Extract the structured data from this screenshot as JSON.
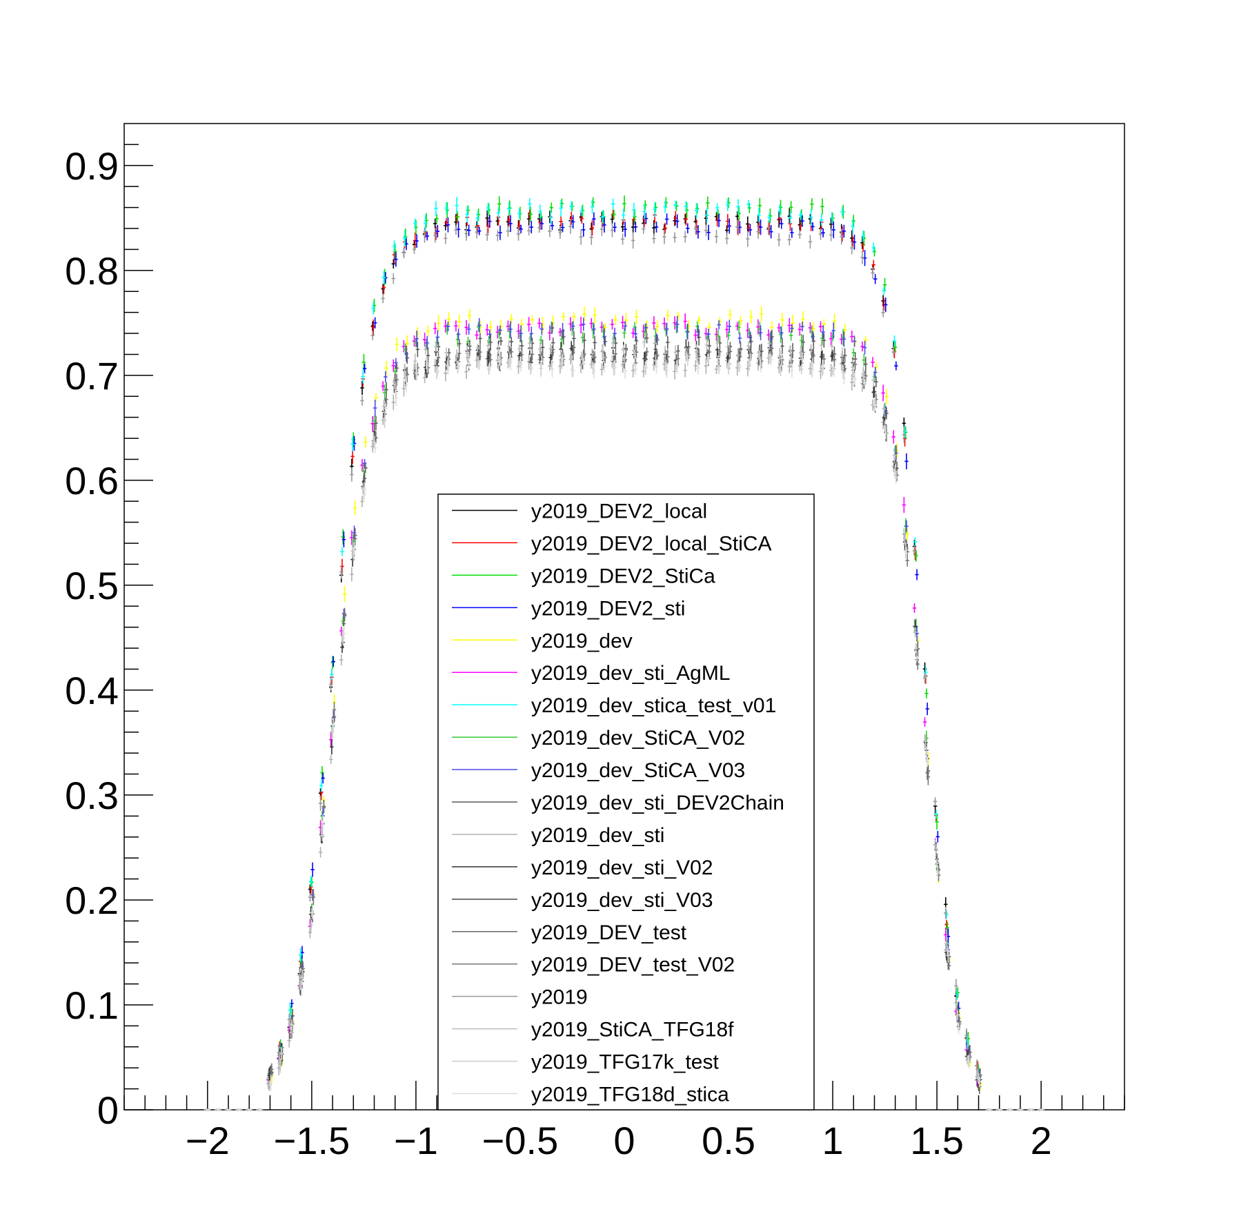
{
  "chart_data": {
    "type": "scatter",
    "xlim": [
      -2.4,
      2.4
    ],
    "ylim": [
      0,
      0.94
    ],
    "grid": false,
    "legend_position": "bottom-center",
    "x_ticks": [
      {
        "value": -2,
        "label": "−2"
      },
      {
        "value": -1.5,
        "label": "−1.5"
      },
      {
        "value": -1,
        "label": "−1"
      },
      {
        "value": -0.5,
        "label": "−0.5"
      },
      {
        "value": 0,
        "label": "0"
      },
      {
        "value": 0.5,
        "label": "0.5"
      },
      {
        "value": 1,
        "label": "1"
      },
      {
        "value": 1.5,
        "label": "1.5"
      },
      {
        "value": 2,
        "label": "2"
      }
    ],
    "y_ticks": [
      {
        "value": 0,
        "label": "0"
      },
      {
        "value": 0.1,
        "label": "0.1"
      },
      {
        "value": 0.2,
        "label": "0.2"
      },
      {
        "value": 0.3,
        "label": "0.3"
      },
      {
        "value": 0.4,
        "label": "0.4"
      },
      {
        "value": 0.5,
        "label": "0.5"
      },
      {
        "value": 0.6,
        "label": "0.6"
      },
      {
        "value": 0.7,
        "label": "0.7"
      },
      {
        "value": 0.8,
        "label": "0.8"
      },
      {
        "value": 0.9,
        "label": "0.9"
      }
    ],
    "series": [
      {
        "name": "y2019_DEV2_local",
        "color": "#000000",
        "plateau": 0.845
      },
      {
        "name": "y2019_DEV2_local_StiCA",
        "color": "#ff0000",
        "plateau": 0.847
      },
      {
        "name": "y2019_DEV2_StiCa",
        "color": "#00dd00",
        "plateau": 0.858
      },
      {
        "name": "y2019_DEV2_sti",
        "color": "#0000ff",
        "plateau": 0.843
      },
      {
        "name": "y2019_dev",
        "color": "#ffff00",
        "plateau": 0.752
      },
      {
        "name": "y2019_dev_sti_AgML",
        "color": "#ff00ff",
        "plateau": 0.745
      },
      {
        "name": "y2019_dev_stica_test_v01",
        "color": "#00ffff",
        "plateau": 0.857
      },
      {
        "name": "y2019_dev_StiCA_V02",
        "color": "#33cc33",
        "plateau": 0.74
      },
      {
        "name": "y2019_dev_StiCA_V03",
        "color": "#4a4aee",
        "plateau": 0.742
      },
      {
        "name": "y2019_dev_sti_DEV2Chain",
        "color": "#5a5a5a",
        "plateau": 0.73
      },
      {
        "name": "y2019_dev_sti",
        "color": "#b0b0b0",
        "plateau": 0.71
      },
      {
        "name": "y2019_dev_sti_V02",
        "color": "#333333",
        "plateau": 0.72
      },
      {
        "name": "y2019_dev_sti_V03",
        "color": "#444444",
        "plateau": 0.718
      },
      {
        "name": "y2019_DEV_test",
        "color": "#666666",
        "plateau": 0.715
      },
      {
        "name": "y2019_DEV_test_V02",
        "color": "#777777",
        "plateau": 0.72
      },
      {
        "name": "y2019",
        "color": "#999999",
        "plateau": 0.835
      },
      {
        "name": "y2019_StiCA_TFG18f",
        "color": "#bbbbbb",
        "plateau": 0.725
      },
      {
        "name": "y2019_TFG17k_test",
        "color": "#cccccc",
        "plateau": 0.712
      },
      {
        "name": "y2019_TFG18d_stica",
        "color": "#dddddd",
        "plateau": 0.71
      }
    ]
  }
}
